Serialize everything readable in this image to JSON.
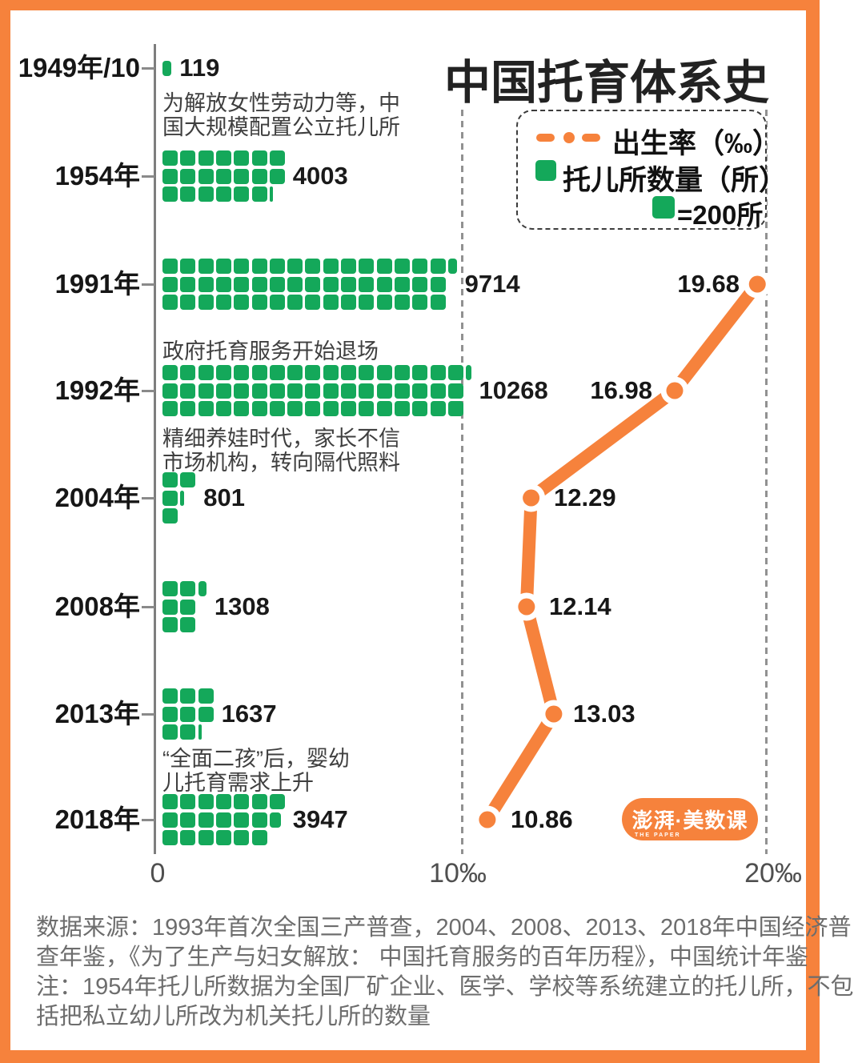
{
  "colors": {
    "accent_orange": "#F6823C",
    "accent_green": "#14A85A"
  },
  "title": "中国托育体系史",
  "legend": {
    "birth_rate_label": "出生率（‰）",
    "nursery_label": "托儿所数量（所）",
    "unit_label": "=200所"
  },
  "x_axis": {
    "ticks": [
      "0",
      "10‰",
      "20‰"
    ]
  },
  "rows": [
    {
      "year": "1949年/10",
      "nurseries": 119,
      "note_below": [
        "为解放女性劳动力等，中",
        "国大规模配置公立托儿所"
      ]
    },
    {
      "year": "1954年",
      "nurseries": 4003
    },
    {
      "year": "1991年",
      "nurseries": 9714,
      "birth_rate": 19.68
    },
    {
      "year": "1992年",
      "nurseries": 10268,
      "birth_rate": 16.98,
      "note_above": [
        "政府托育服务开始退场"
      ],
      "note_below": [
        "精细养娃时代，家长不信",
        "市场机构，转向隔代照料"
      ]
    },
    {
      "year": "2004年",
      "nurseries": 801,
      "birth_rate": 12.29
    },
    {
      "year": "2008年",
      "nurseries": 1308,
      "birth_rate": 12.14
    },
    {
      "year": "2013年",
      "nurseries": 1637,
      "birth_rate": 13.03
    },
    {
      "year": "2018年",
      "nurseries": 3947,
      "birth_rate": 10.86,
      "note_above": [
        "“全面二孩”后，婴幼",
        "儿托育需求上升"
      ]
    }
  ],
  "chart_data": {
    "type": "pictograph-bar+line",
    "title": "中国托育体系史",
    "categories": [
      "1949年/10",
      "1954年",
      "1991年",
      "1992年",
      "2004年",
      "2008年",
      "2013年",
      "2018年"
    ],
    "series": [
      {
        "name": "托儿所数量（所）",
        "type": "pictograph-bar",
        "icon_value": 200,
        "icon_label": "=200所",
        "values": [
          119,
          4003,
          9714,
          10268,
          801,
          1308,
          1637,
          3947
        ]
      },
      {
        "name": "出生率（‰）",
        "type": "line",
        "values": [
          null,
          null,
          19.68,
          16.98,
          12.29,
          12.14,
          13.03,
          10.86
        ]
      }
    ],
    "xlim": [
      0,
      20
    ],
    "x_ticks": [
      "0",
      "10‰",
      "20‰"
    ],
    "grid": "dashed vertical at 10‰ and 20‰",
    "legend_position": "top-right",
    "annotations": [
      "为解放女性劳动力等，中国大规模配置公立托儿所",
      "政府托育服务开始退场",
      "精细养娃时代，家长不信市场机构，转向隔代照料",
      "“全面二孩”后，婴幼儿托育需求上升"
    ]
  },
  "logo": {
    "text": "澎湃·美数课",
    "subtext": "THE PAPER"
  },
  "source_lines": [
    "数据来源：1993年首次全国三产普查，2004、2008、2013、2018年中国经济普",
    "查年鉴，《为了生产与妇女解放： 中国托育服务的百年历程》，中国统计年鉴",
    "注：1954年托儿所数据为全国厂矿企业、医学、学校等系统建立的托儿所，不包",
    "括把私立幼儿所改为机关托儿所的数量"
  ]
}
